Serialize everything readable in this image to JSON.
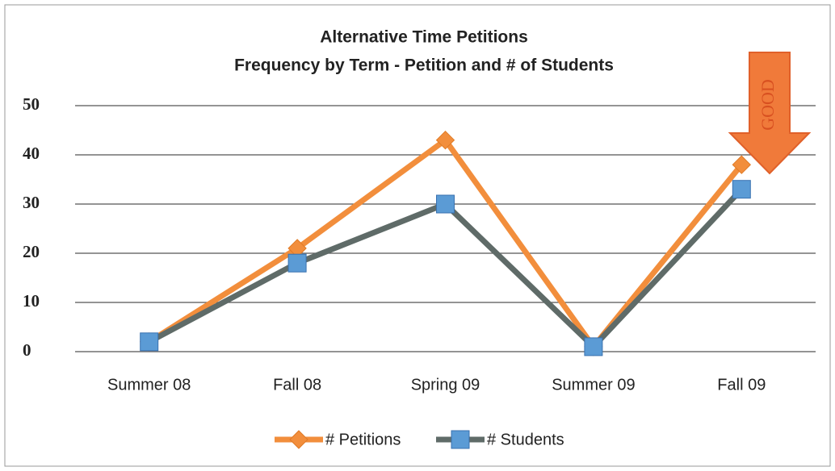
{
  "chart_data": {
    "type": "line",
    "title": "Alternative Time Petitions",
    "subtitle": "Frequency by Term -  Petition and # of Students",
    "annotation": "GOOD",
    "categories": [
      "Summer 08",
      "Fall 08",
      "Spring 09",
      "Summer 09",
      "Fall 09"
    ],
    "series": [
      {
        "name": "# Petitions",
        "color": "#f28e3c",
        "marker": "diamond",
        "values": [
          2,
          21,
          43,
          1,
          38
        ]
      },
      {
        "name": "# Students",
        "color": "#5f6b68",
        "marker": "square",
        "marker_color": "#5b9bd5",
        "values": [
          2,
          18,
          30,
          1,
          33
        ]
      }
    ],
    "ylim": [
      0,
      50
    ],
    "yticks": [
      0,
      10,
      20,
      30,
      40,
      50
    ],
    "grid": true,
    "legend": "bottom"
  }
}
